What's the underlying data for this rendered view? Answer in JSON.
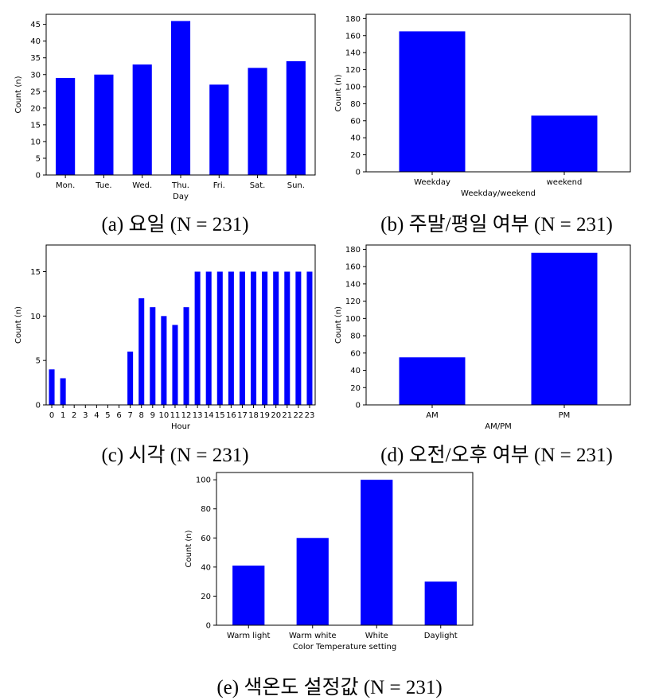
{
  "chart_data": [
    {
      "id": "a",
      "type": "bar",
      "caption": "(a)  요일 (N  =  231)",
      "title": "",
      "xlabel": "Day",
      "ylabel": "Count (n)",
      "categories": [
        "Mon.",
        "Tue.",
        "Wed.",
        "Thu.",
        "Fri.",
        "Sat.",
        "Sun."
      ],
      "values": [
        29,
        30,
        33,
        46,
        27,
        32,
        34
      ],
      "ylim": [
        0,
        48
      ],
      "yticks": [
        0,
        5,
        10,
        15,
        20,
        25,
        30,
        35,
        40,
        45
      ],
      "color": "#0000ff",
      "grid": false
    },
    {
      "id": "b",
      "type": "bar",
      "caption": "(b)  주말/평일  여부  (N  =  231)",
      "title": "",
      "xlabel": "Weekday/weekend",
      "ylabel": "Count (n)",
      "categories": [
        "Weekday",
        "weekend"
      ],
      "values": [
        165,
        66
      ],
      "ylim": [
        0,
        185
      ],
      "yticks": [
        0,
        20,
        40,
        60,
        80,
        100,
        120,
        140,
        160,
        180
      ],
      "color": "#0000ff",
      "grid": false
    },
    {
      "id": "c",
      "type": "bar",
      "caption": "(c)  시각  (N  =  231)",
      "title": "",
      "xlabel": "Hour",
      "ylabel": "Count (n)",
      "categories": [
        "0",
        "1",
        "2",
        "3",
        "4",
        "5",
        "6",
        "7",
        "8",
        "9",
        "10",
        "11",
        "12",
        "13",
        "14",
        "15",
        "16",
        "17",
        "18",
        "19",
        "20",
        "21",
        "22",
        "23"
      ],
      "values": [
        4,
        3,
        0,
        0,
        0,
        0,
        0,
        6,
        12,
        11,
        10,
        9,
        11,
        15,
        15,
        15,
        15,
        15,
        15,
        15,
        15,
        15,
        15,
        15
      ],
      "ylim": [
        0,
        18
      ],
      "yticks": [
        0,
        5,
        10,
        15
      ],
      "color": "#0000ff",
      "grid": false
    },
    {
      "id": "d",
      "type": "bar",
      "caption": "(d)  오전/오후  여부  (N  =  231)",
      "title": "",
      "xlabel": "AM/PM",
      "ylabel": "Count (n)",
      "categories": [
        "AM",
        "PM"
      ],
      "values": [
        55,
        176
      ],
      "ylim": [
        0,
        185
      ],
      "yticks": [
        0,
        20,
        40,
        60,
        80,
        100,
        120,
        140,
        160,
        180
      ],
      "color": "#0000ff",
      "grid": false
    },
    {
      "id": "e",
      "type": "bar",
      "caption": "(e)  색온도  설정값  (N  =  231)",
      "title": "",
      "xlabel": "Color Temperature setting",
      "ylabel": "Count (n)",
      "categories": [
        "Warm light",
        "Warm white",
        "White",
        "Daylight"
      ],
      "values": [
        41,
        60,
        100,
        30
      ],
      "ylim": [
        0,
        105
      ],
      "yticks": [
        0,
        20,
        40,
        60,
        80,
        100
      ],
      "color": "#0000ff",
      "grid": false
    }
  ]
}
